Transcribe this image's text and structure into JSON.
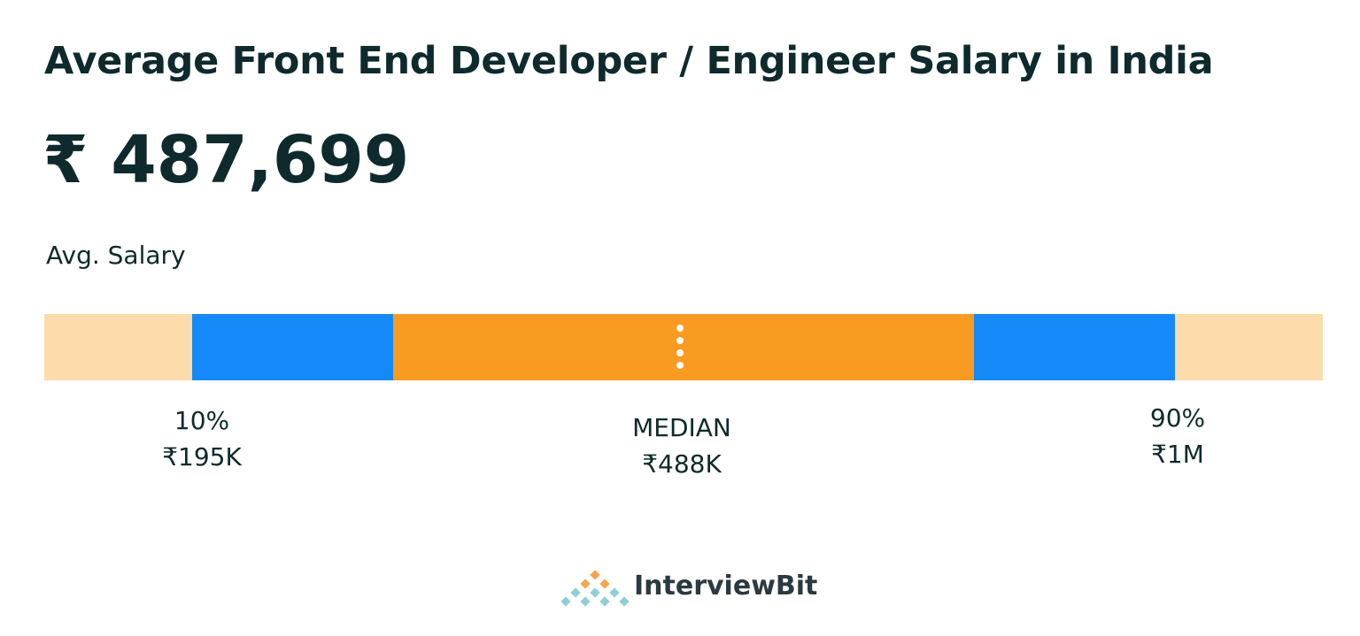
{
  "header": {
    "title": "Average Front End Developer / Engineer Salary in India",
    "amount": "₹ 487,699",
    "caption": "Avg. Salary"
  },
  "markers": [
    {
      "label": "10%",
      "value": "₹195K"
    },
    {
      "label": "MEDIAN",
      "value": "₹488K"
    },
    {
      "label": "90%",
      "value": "₹1M"
    }
  ],
  "footer": {
    "brand": "InterviewBit"
  }
}
